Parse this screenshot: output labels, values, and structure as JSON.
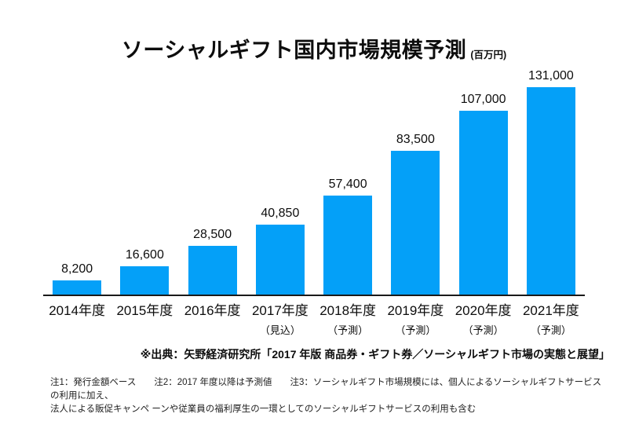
{
  "title": {
    "text": "ソーシャルギフト国内市場規模予測",
    "unit": "(百万円)"
  },
  "chart_data": {
    "type": "bar",
    "title": "ソーシャルギフト国内市場規模予測 (百万円)",
    "categories": [
      "2014年度",
      "2015年度",
      "2016年度",
      "2017年度",
      "2018年度",
      "2019年度",
      "2020年度",
      "2021年度"
    ],
    "category_notes": [
      "",
      "",
      "",
      "（見込）",
      "（予測）",
      "（予測）",
      "（予測）",
      "（予測）"
    ],
    "values": [
      8200,
      16600,
      28500,
      40850,
      57400,
      83500,
      107000,
      131000
    ],
    "value_labels": [
      "8,200",
      "16,600",
      "28,500",
      "40,850",
      "57,400",
      "83,500",
      "107,000",
      "131,000"
    ],
    "unit": "百万円",
    "ylim": [
      0,
      131000
    ],
    "grid": false,
    "legend": "none",
    "bar_color": "#04A0F8",
    "axis_color": "#1a1a1a"
  },
  "source": "※出典：矢野経済研究所「2017 年版 商品券・ギフト券／ソーシャルギフト市場の実態と展望」",
  "notes": [
    "注1：発行金額ベース　　注2：2017 年度以降は予測値　　注3：ソーシャルギフト市場規模には、個人によるソーシャルギフトサービスの利用に加え、",
    "法人による販促キャンペ ーンや従業員の福利厚生の一環としてのソーシャルギフトサービスの利用も含む"
  ]
}
